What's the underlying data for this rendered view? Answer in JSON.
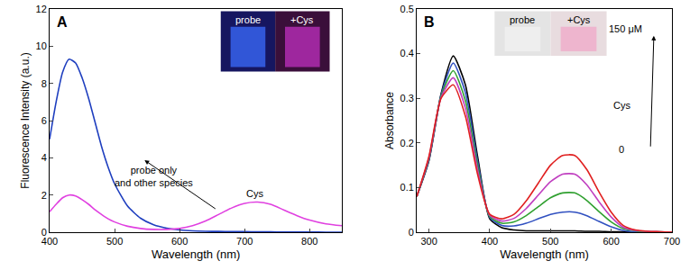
{
  "chart_data": [
    {
      "type": "line",
      "title": "A",
      "x_label": "Wavelength (nm)",
      "y_label": "Fluorescence Intensity (a.u.)",
      "xlim": [
        400,
        850
      ],
      "xticks": [
        400,
        500,
        600,
        700,
        800
      ],
      "ylim": [
        0,
        12
      ],
      "yticks": [
        0,
        2,
        4,
        6,
        8,
        10,
        12
      ],
      "x": [
        400,
        410,
        420,
        430,
        440,
        450,
        460,
        470,
        480,
        490,
        500,
        520,
        540,
        560,
        580,
        600,
        620,
        640,
        660,
        680,
        700,
        720,
        740,
        760,
        780,
        800,
        825,
        850
      ],
      "series": [
        {
          "color": "#1f3fbf",
          "values": [
            5.0,
            7.0,
            8.6,
            9.3,
            9.1,
            8.3,
            7.2,
            5.9,
            4.6,
            3.5,
            2.6,
            1.4,
            0.75,
            0.4,
            0.22,
            0.12,
            0.07,
            0.05,
            0.04,
            0.03,
            0.03,
            0.02,
            0.02,
            0.01,
            0.01,
            0.01,
            0,
            0
          ]
        },
        {
          "color": "#e040e0",
          "values": [
            1.1,
            1.5,
            1.85,
            2.0,
            1.95,
            1.75,
            1.5,
            1.2,
            0.95,
            0.72,
            0.55,
            0.32,
            0.2,
            0.15,
            0.15,
            0.2,
            0.35,
            0.6,
            0.95,
            1.3,
            1.55,
            1.62,
            1.5,
            1.2,
            0.9,
            0.65,
            0.45,
            0.35
          ]
        }
      ],
      "annotations": [
        {
          "text": "probe only\nand other species",
          "x": 560,
          "y": 3.0
        },
        {
          "text": "Cys",
          "x": 715,
          "y": 2.1
        }
      ],
      "inset_labels": [
        "probe",
        "+Cys"
      ]
    },
    {
      "type": "line",
      "title": "B",
      "x_label": "Wavelength (nm)",
      "y_label": "Absorbance",
      "xlim": [
        280,
        700
      ],
      "xticks": [
        300,
        400,
        500,
        600,
        700
      ],
      "ylim": [
        0,
        0.5
      ],
      "yticks": [
        0,
        0.1,
        0.2,
        0.3,
        0.4,
        0.5
      ],
      "x": [
        280,
        300,
        320,
        340,
        360,
        380,
        400,
        420,
        440,
        460,
        480,
        500,
        520,
        540,
        560,
        580,
        600,
        620,
        640,
        660,
        680,
        700
      ],
      "series": [
        {
          "color": "#000000",
          "values": [
            0.08,
            0.16,
            0.31,
            0.395,
            0.33,
            0.17,
            0.03,
            0.01,
            0.005,
            0.003,
            0.003,
            0.003,
            0.003,
            0.003,
            0.002,
            0.002,
            0.001,
            0.001,
            0,
            0,
            0,
            0
          ]
        },
        {
          "color": "#3050c0",
          "values": [
            0.08,
            0.162,
            0.308,
            0.379,
            0.313,
            0.16,
            0.033,
            0.015,
            0.014,
            0.02,
            0.03,
            0.04,
            0.045,
            0.045,
            0.037,
            0.024,
            0.012,
            0.004,
            0.001,
            0.001,
            0,
            0
          ]
        },
        {
          "color": "#30a030",
          "values": [
            0.08,
            0.165,
            0.305,
            0.362,
            0.295,
            0.15,
            0.035,
            0.02,
            0.023,
            0.037,
            0.057,
            0.077,
            0.088,
            0.088,
            0.071,
            0.046,
            0.023,
            0.008,
            0.003,
            0.001,
            0.001,
            0
          ]
        },
        {
          "color": "#c040c0",
          "values": [
            0.08,
            0.167,
            0.302,
            0.346,
            0.278,
            0.14,
            0.038,
            0.025,
            0.031,
            0.053,
            0.083,
            0.113,
            0.13,
            0.13,
            0.106,
            0.068,
            0.034,
            0.011,
            0.004,
            0.002,
            0.001,
            0
          ]
        },
        {
          "color": "#e02020",
          "values": [
            0.08,
            0.17,
            0.3,
            0.33,
            0.26,
            0.13,
            0.04,
            0.03,
            0.04,
            0.07,
            0.11,
            0.15,
            0.172,
            0.172,
            0.14,
            0.09,
            0.045,
            0.015,
            0.005,
            0.002,
            0.001,
            0
          ]
        }
      ],
      "annotations": [
        {
          "text": "150 μM",
          "x": 623,
          "y": 0.456
        },
        {
          "text": "Cys",
          "x": 617,
          "y": 0.285
        },
        {
          "text": "0",
          "x": 617,
          "y": 0.185
        }
      ],
      "inset_labels": [
        "probe",
        "+Cys"
      ]
    }
  ]
}
